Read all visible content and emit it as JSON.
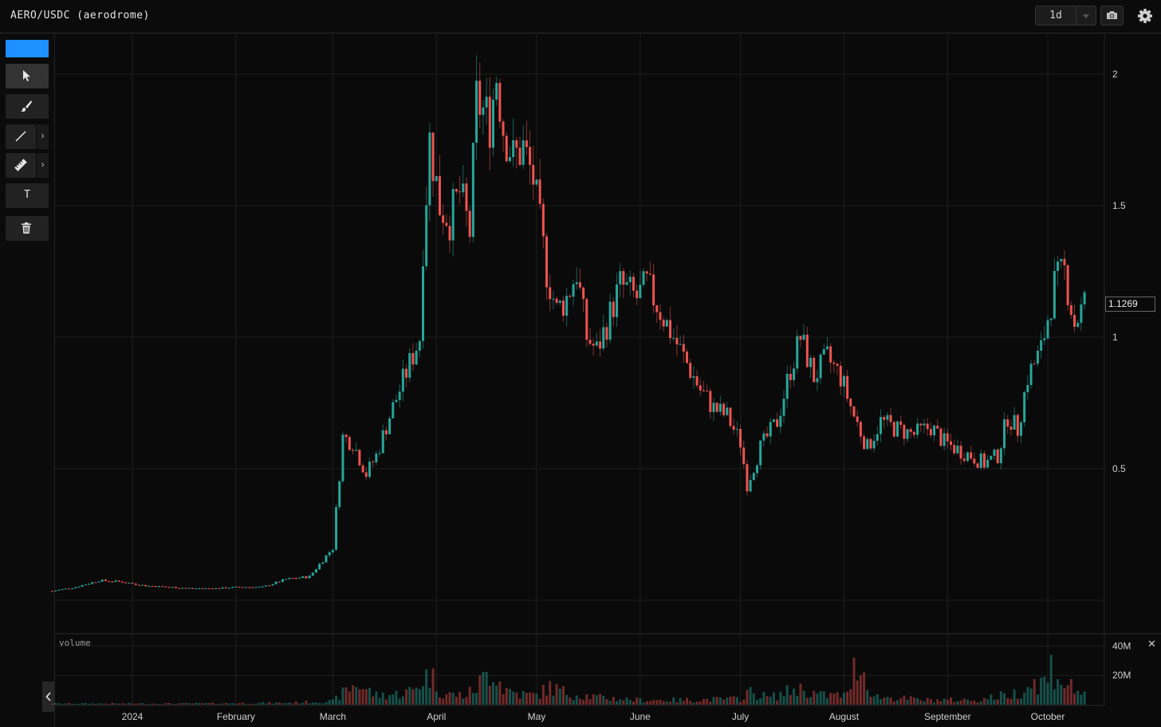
{
  "header": {
    "pair_title": "AERO/USDC (aerodrome)",
    "timeframe": "1d",
    "icons": {
      "dropdown": "chevron-down-icon",
      "screenshot": "camera-icon",
      "settings": "gear-icon"
    }
  },
  "toolbar": {
    "color_swatch": "#1e90ff",
    "tools": [
      "select-cursor-icon",
      "brush-icon",
      "line-icon",
      "ruler-icon",
      "text-icon",
      "trash-icon"
    ],
    "text_tool_glyph": "T",
    "expand_glyph": "›"
  },
  "colors": {
    "up": "#26a69a",
    "down": "#ef5350",
    "grid": "#1e1e1e",
    "background": "#0a0a0a"
  },
  "chart_data": {
    "type": "candlestick",
    "price_axis_ticks": [
      {
        "value": 0.5,
        "label": "0.5"
      },
      {
        "value": 1,
        "label": "1"
      },
      {
        "value": 1.5,
        "label": "1.5"
      },
      {
        "value": 2,
        "label": "2"
      }
    ],
    "last_price_label": "1.1269",
    "time_axis_ticks": [
      {
        "date": "2024-01-01",
        "label": "2024"
      },
      {
        "date": "2024-02-01",
        "label": "February"
      },
      {
        "date": "2024-03-01",
        "label": "March"
      },
      {
        "date": "2024-04-01",
        "label": "April"
      },
      {
        "date": "2024-05-01",
        "label": "May"
      },
      {
        "date": "2024-06-01",
        "label": "June"
      },
      {
        "date": "2024-07-01",
        "label": "July"
      },
      {
        "date": "2024-08-01",
        "label": "August"
      },
      {
        "date": "2024-09-01",
        "label": "September"
      },
      {
        "date": "2024-10-01",
        "label": "October"
      }
    ],
    "series_close": [
      [
        "2023-12-08",
        0.035
      ],
      [
        "2023-12-15",
        0.05
      ],
      [
        "2023-12-22",
        0.075
      ],
      [
        "2023-12-29",
        0.07
      ],
      [
        "2024-01-05",
        0.055
      ],
      [
        "2024-01-12",
        0.05
      ],
      [
        "2024-01-19",
        0.045
      ],
      [
        "2024-01-26",
        0.045
      ],
      [
        "2024-02-02",
        0.05
      ],
      [
        "2024-02-09",
        0.05
      ],
      [
        "2024-02-16",
        0.08
      ],
      [
        "2024-02-23",
        0.09
      ],
      [
        "2024-03-01",
        0.2
      ],
      [
        "2024-03-04",
        0.62
      ],
      [
        "2024-03-07",
        0.6
      ],
      [
        "2024-03-11",
        0.48
      ],
      [
        "2024-03-14",
        0.55
      ],
      [
        "2024-03-18",
        0.7
      ],
      [
        "2024-03-21",
        0.8
      ],
      [
        "2024-03-24",
        0.9
      ],
      [
        "2024-03-27",
        1.0
      ],
      [
        "2024-03-28",
        1.35
      ],
      [
        "2024-03-30",
        1.75
      ],
      [
        "2024-04-02",
        1.5
      ],
      [
        "2024-04-05",
        1.45
      ],
      [
        "2024-04-08",
        1.55
      ],
      [
        "2024-04-11",
        1.4
      ],
      [
        "2024-04-13",
        1.9
      ],
      [
        "2024-04-17",
        1.82
      ],
      [
        "2024-04-19",
        2.0
      ],
      [
        "2024-04-21",
        1.8
      ],
      [
        "2024-04-24",
        1.68
      ],
      [
        "2024-04-27",
        1.72
      ],
      [
        "2024-04-30",
        1.6
      ],
      [
        "2024-05-04",
        1.25
      ],
      [
        "2024-05-07",
        1.1
      ],
      [
        "2024-05-10",
        1.15
      ],
      [
        "2024-05-13",
        1.25
      ],
      [
        "2024-05-16",
        1.0
      ],
      [
        "2024-05-19",
        0.95
      ],
      [
        "2024-05-22",
        1.05
      ],
      [
        "2024-05-26",
        1.2
      ],
      [
        "2024-05-31",
        1.15
      ],
      [
        "2024-06-03",
        1.2
      ],
      [
        "2024-06-07",
        1.1
      ],
      [
        "2024-06-11",
        1.0
      ],
      [
        "2024-06-15",
        0.9
      ],
      [
        "2024-06-19",
        0.8
      ],
      [
        "2024-06-23",
        0.73
      ],
      [
        "2024-06-27",
        0.7
      ],
      [
        "2024-07-01",
        0.6
      ],
      [
        "2024-07-03",
        0.44
      ],
      [
        "2024-07-07",
        0.58
      ],
      [
        "2024-07-12",
        0.68
      ],
      [
        "2024-07-16",
        0.88
      ],
      [
        "2024-07-19",
        1.0
      ],
      [
        "2024-07-23",
        0.85
      ],
      [
        "2024-07-27",
        0.92
      ],
      [
        "2024-07-31",
        0.85
      ],
      [
        "2024-08-04",
        0.7
      ],
      [
        "2024-08-08",
        0.58
      ],
      [
        "2024-08-12",
        0.68
      ],
      [
        "2024-08-17",
        0.65
      ],
      [
        "2024-08-22",
        0.63
      ],
      [
        "2024-08-27",
        0.66
      ],
      [
        "2024-08-31",
        0.6
      ],
      [
        "2024-09-03",
        0.58
      ],
      [
        "2024-09-08",
        0.55
      ],
      [
        "2024-09-12",
        0.52
      ],
      [
        "2024-09-16",
        0.55
      ],
      [
        "2024-09-19",
        0.7
      ],
      [
        "2024-09-22",
        0.65
      ],
      [
        "2024-09-25",
        0.85
      ],
      [
        "2024-09-29",
        0.95
      ],
      [
        "2024-10-03",
        1.2
      ],
      [
        "2024-10-06",
        1.25
      ],
      [
        "2024-10-09",
        1.05
      ],
      [
        "2024-10-12",
        1.13
      ]
    ],
    "volume_panel": {
      "title": "volume",
      "axis_ticks": [
        {
          "value": 20000000,
          "label": "20M"
        },
        {
          "value": 40000000,
          "label": "40M"
        }
      ],
      "series": [
        [
          "2023-12-08",
          1000000
        ],
        [
          "2024-01-15",
          1000000
        ],
        [
          "2024-02-15",
          1500000
        ],
        [
          "2024-03-01",
          3000000
        ],
        [
          "2024-03-05",
          12000000
        ],
        [
          "2024-03-08",
          18000000
        ],
        [
          "2024-03-14",
          8000000
        ],
        [
          "2024-03-20",
          9000000
        ],
        [
          "2024-03-25",
          12000000
        ],
        [
          "2024-03-28",
          22000000
        ],
        [
          "2024-03-30",
          26000000
        ],
        [
          "2024-04-03",
          9000000
        ],
        [
          "2024-04-10",
          8000000
        ],
        [
          "2024-04-13",
          15000000
        ],
        [
          "2024-04-18",
          32000000
        ],
        [
          "2024-04-21",
          14000000
        ],
        [
          "2024-04-26",
          9000000
        ],
        [
          "2024-05-01",
          8000000
        ],
        [
          "2024-05-05",
          15000000
        ],
        [
          "2024-05-10",
          10000000
        ],
        [
          "2024-05-20",
          6000000
        ],
        [
          "2024-06-01",
          4000000
        ],
        [
          "2024-06-15",
          4000000
        ],
        [
          "2024-07-01",
          5000000
        ],
        [
          "2024-07-03",
          11000000
        ],
        [
          "2024-07-10",
          6000000
        ],
        [
          "2024-07-18",
          14000000
        ],
        [
          "2024-07-25",
          8000000
        ],
        [
          "2024-08-02",
          8000000
        ],
        [
          "2024-08-05",
          40000000
        ],
        [
          "2024-08-10",
          7000000
        ],
        [
          "2024-08-25",
          4000000
        ],
        [
          "2024-09-10",
          4000000
        ],
        [
          "2024-09-22",
          10000000
        ],
        [
          "2024-09-26",
          18000000
        ],
        [
          "2024-10-01",
          20000000
        ],
        [
          "2024-10-02",
          32000000
        ],
        [
          "2024-10-06",
          18000000
        ],
        [
          "2024-10-10",
          12000000
        ]
      ]
    }
  }
}
